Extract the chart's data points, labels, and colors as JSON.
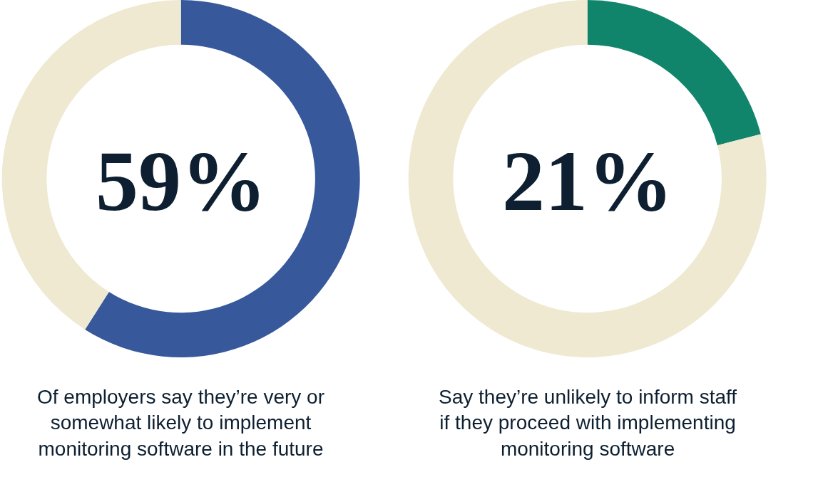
{
  "chart_data": [
    {
      "type": "donut",
      "categories": [
        null,
        null
      ],
      "values": [
        59,
        41
      ],
      "colors": [
        "#37589a",
        "#efe9d2"
      ],
      "annotations": [
        "59%",
        "Of employers say they’re very or\nsomewhat likely to implement\nmonitoring software in the future"
      ]
    },
    {
      "type": "donut",
      "categories": [
        null,
        null
      ],
      "values": [
        21,
        79
      ],
      "colors": [
        "#11856b",
        "#efe9d2"
      ],
      "annotations": [
        "21%",
        "Say they’re unlikely to inform staff\nif they proceed with implementing\nmonitoring software"
      ]
    }
  ]
}
